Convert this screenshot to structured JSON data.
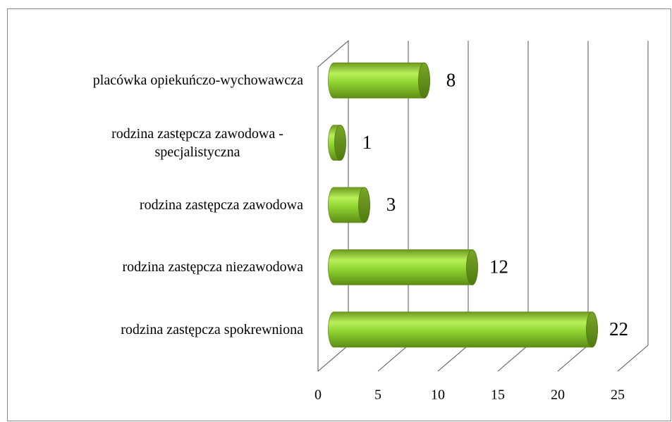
{
  "chart_data": {
    "type": "bar",
    "categories": [
      "placówka opiekuńczo-wychowawcza",
      "rodzina zastępcza zawodowa - specjalistyczna",
      "rodzina zastępcza zawodowa",
      "rodzina zastępcza niezawodowa",
      "rodzina zastępcza spokrewniona"
    ],
    "values": [
      8,
      1,
      3,
      12,
      22
    ],
    "color": "#8fd431",
    "xlim": [
      0,
      25
    ],
    "xticks": [
      0,
      5,
      10,
      15,
      20,
      25
    ],
    "grid": true
  }
}
